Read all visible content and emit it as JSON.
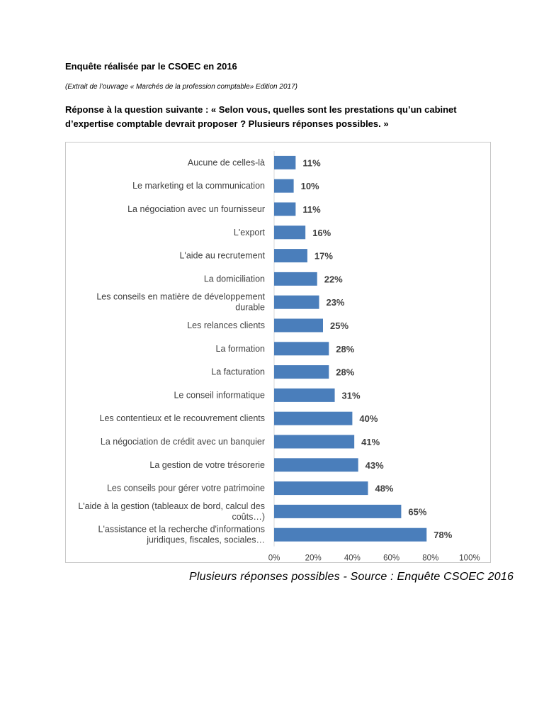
{
  "document": {
    "heading": "Enquête réalisée par le CSOEC en 2016",
    "extract": "(Extrait de l’ouvrage « Marchés de la profession comptable» Edition 2017)",
    "question": "Réponse à la question suivante : « Selon vous, quelles sont les prestations qu’un cabinet d’expertise comptable devrait proposer ? Plusieurs réponses possibles. »",
    "source": "Plusieurs réponses possibles - Source : Enquête CSOEC 2016"
  },
  "colors": {
    "bar": "#4a7ebb",
    "gridline": "#d9d9d9",
    "text": "#404040"
  },
  "chart_data": {
    "type": "bar",
    "orientation": "horizontal",
    "title": "",
    "xlabel": "",
    "ylabel": "",
    "xlim": [
      0,
      100
    ],
    "x_ticks": [
      "0%",
      "20%",
      "40%",
      "60%",
      "80%",
      "100%"
    ],
    "x_tick_values": [
      0,
      20,
      40,
      60,
      80,
      100
    ],
    "grid": false,
    "categories": [
      [
        "Aucune de celles-là"
      ],
      [
        "Le marketing et la communication"
      ],
      [
        "La négociation avec un fournisseur"
      ],
      [
        "L'export"
      ],
      [
        "L'aide au recrutement"
      ],
      [
        "La domiciliation"
      ],
      [
        "Les conseils en matière de développement",
        "durable"
      ],
      [
        "Les relances clients"
      ],
      [
        "La formation"
      ],
      [
        "La facturation"
      ],
      [
        "Le conseil informatique"
      ],
      [
        "Les contentieux et le recouvrement clients"
      ],
      [
        "La négociation de crédit avec un banquier"
      ],
      [
        "La gestion de votre trésorerie"
      ],
      [
        "Les conseils pour gérer votre patrimoine"
      ],
      [
        "L'aide à la gestion (tableaux de bord, calcul des",
        "coûts…)"
      ],
      [
        "L'assistance et la recherche d'informations",
        "juridiques, fiscales, sociales…"
      ]
    ],
    "values": [
      11,
      10,
      11,
      16,
      17,
      22,
      23,
      25,
      28,
      28,
      31,
      40,
      41,
      43,
      48,
      65,
      78
    ],
    "data_labels": [
      "11%",
      "10%",
      "11%",
      "16%",
      "17%",
      "22%",
      "23%",
      "25%",
      "28%",
      "28%",
      "31%",
      "40%",
      "41%",
      "43%",
      "48%",
      "65%",
      "78%"
    ]
  }
}
